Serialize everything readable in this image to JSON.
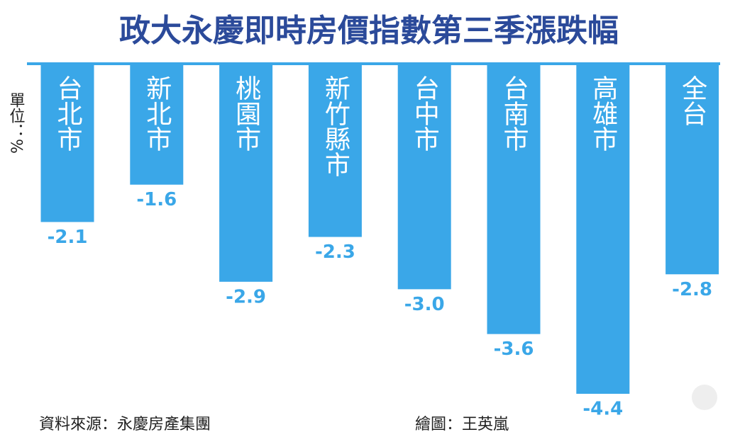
{
  "chart_data": {
    "type": "bar",
    "title": "政大永慶即時房價指數第三季漲跌幅",
    "unit_label": "單位：%",
    "categories": [
      "台北市",
      "新北市",
      "桃園市",
      "新竹縣市",
      "台中市",
      "台南市",
      "高雄市",
      "全台"
    ],
    "values": [
      -2.1,
      -1.6,
      -2.9,
      -2.3,
      -3.0,
      -3.6,
      -4.4,
      -2.8
    ],
    "value_labels": [
      "-2.1",
      "-1.6",
      "-2.9",
      "-2.3",
      "-3.0",
      "-3.6",
      "-4.4",
      "-2.8"
    ],
    "color": "#3aa7e8",
    "source": "資料來源：永慶房產集團",
    "credit": "繪圖：王英嵐"
  }
}
